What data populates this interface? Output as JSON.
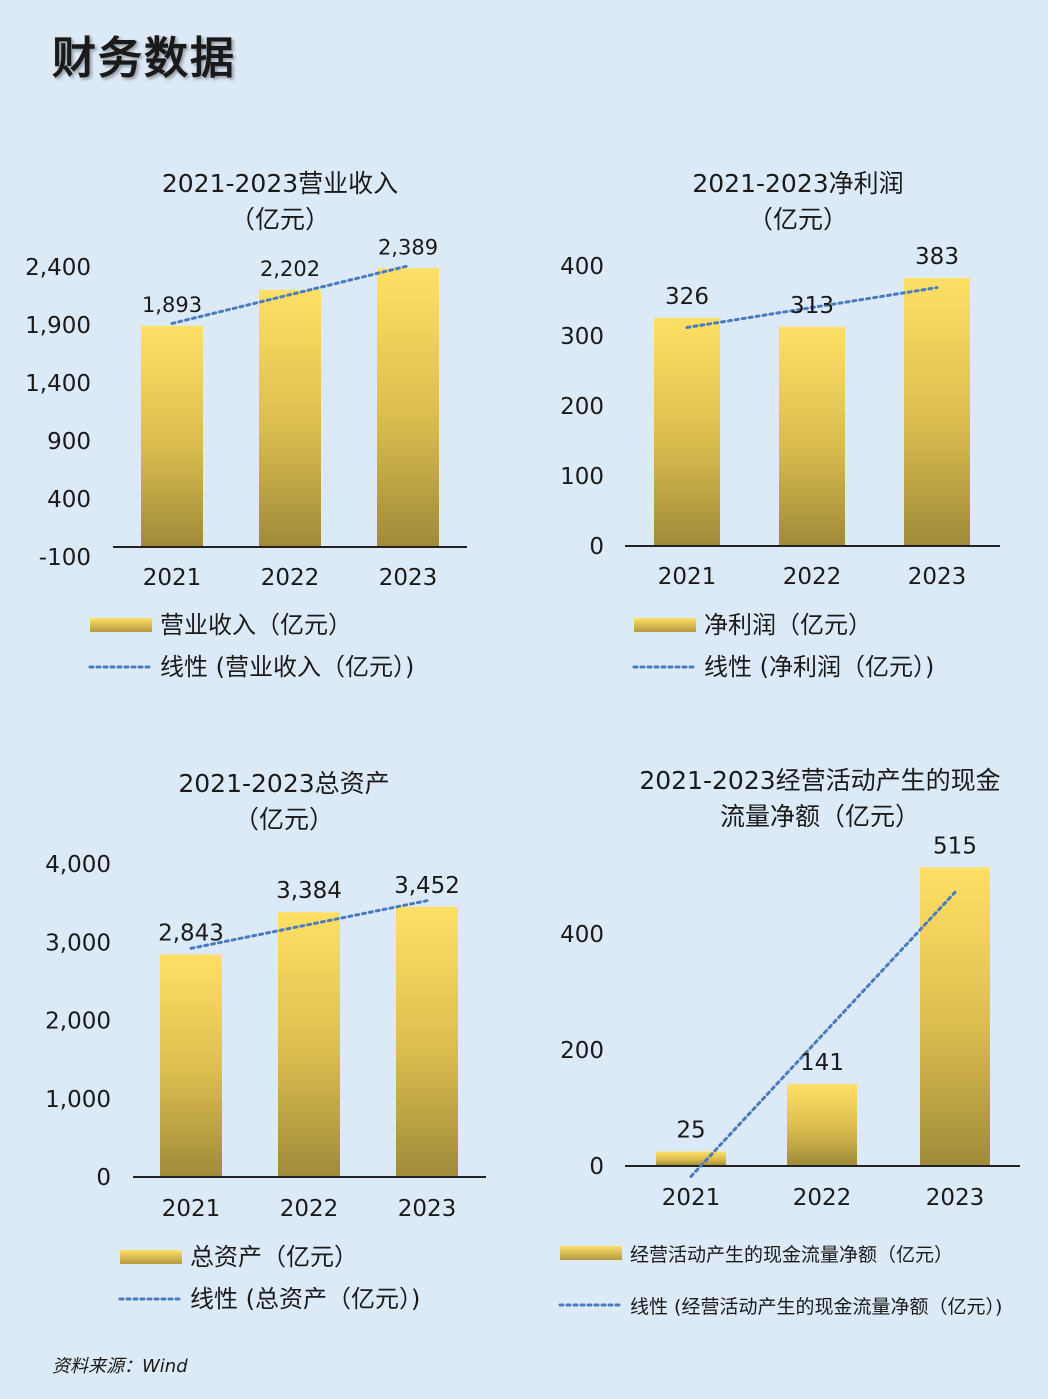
{
  "page_title": "财务数据",
  "source": "资料来源：Wind",
  "colors": {
    "bar_top": "#ffe066",
    "bar_bottom": "#a08a3a",
    "trend": "#4a7bc0",
    "background": "#dce9f7"
  },
  "chart_data": [
    {
      "type": "bar",
      "title_lines": [
        "2021-2023营业收入",
        "（亿元）"
      ],
      "categories": [
        "2021",
        "2022",
        "2023"
      ],
      "series": [
        {
          "name": "营业收入（亿元）",
          "values": [
            1893,
            2202,
            2389
          ]
        }
      ],
      "data_labels": [
        "1,893",
        "2,202",
        "2,389"
      ],
      "ylim": [
        -100,
        2400
      ],
      "yticks": [
        -100,
        400,
        900,
        1400,
        1900,
        2400
      ],
      "ytick_labels": [
        "-100",
        "400",
        "900",
        "1,400",
        "1,900",
        "2,400"
      ],
      "trendline": true,
      "legend": [
        "营业收入（亿元）",
        "线性 (营业收入（亿元）)"
      ],
      "legend_position": "bottom",
      "grid": false
    },
    {
      "type": "bar",
      "title_lines": [
        "2021-2023净利润",
        "（亿元）"
      ],
      "categories": [
        "2021",
        "2022",
        "2023"
      ],
      "series": [
        {
          "name": "净利润（亿元）",
          "values": [
            326,
            313,
            383
          ]
        }
      ],
      "data_labels": [
        "326",
        "313",
        "383"
      ],
      "ylim": [
        0,
        400
      ],
      "yticks": [
        0,
        100,
        200,
        300,
        400
      ],
      "ytick_labels": [
        "0",
        "100",
        "200",
        "300",
        "400"
      ],
      "trendline": true,
      "legend": [
        "净利润（亿元）",
        "线性 (净利润（亿元）)"
      ],
      "legend_position": "bottom",
      "grid": false
    },
    {
      "type": "bar",
      "title_lines": [
        "2021-2023总资产",
        "（亿元）"
      ],
      "categories": [
        "2021",
        "2022",
        "2023"
      ],
      "series": [
        {
          "name": "总资产（亿元）",
          "values": [
            2843,
            3384,
            3452
          ]
        }
      ],
      "data_labels": [
        "2,843",
        "3,384",
        "3,452"
      ],
      "ylim": [
        0,
        4000
      ],
      "yticks": [
        0,
        1000,
        2000,
        3000,
        4000
      ],
      "ytick_labels": [
        "0",
        "1,000",
        "2,000",
        "3,000",
        "4,000"
      ],
      "trendline": true,
      "legend": [
        "总资产（亿元）",
        "线性 (总资产（亿元）)"
      ],
      "legend_position": "bottom",
      "grid": false
    },
    {
      "type": "bar",
      "title_lines": [
        "2021-2023经营活动产生的现金",
        "流量净额（亿元）"
      ],
      "categories": [
        "2021",
        "2022",
        "2023"
      ],
      "series": [
        {
          "name": "经营活动产生的现金流量净额（亿元）",
          "values": [
            25,
            141,
            515
          ]
        }
      ],
      "data_labels": [
        "25",
        "141",
        "515"
      ],
      "ylim": [
        0,
        520
      ],
      "yticks": [
        0,
        200,
        400
      ],
      "ytick_labels": [
        "0",
        "200",
        "400"
      ],
      "trendline": true,
      "legend": [
        "经营活动产生的现金流量净额（亿元）",
        "线性 (经营活动产生的现金流量净额（亿元）)"
      ],
      "legend_position": "bottom",
      "grid": false
    }
  ]
}
